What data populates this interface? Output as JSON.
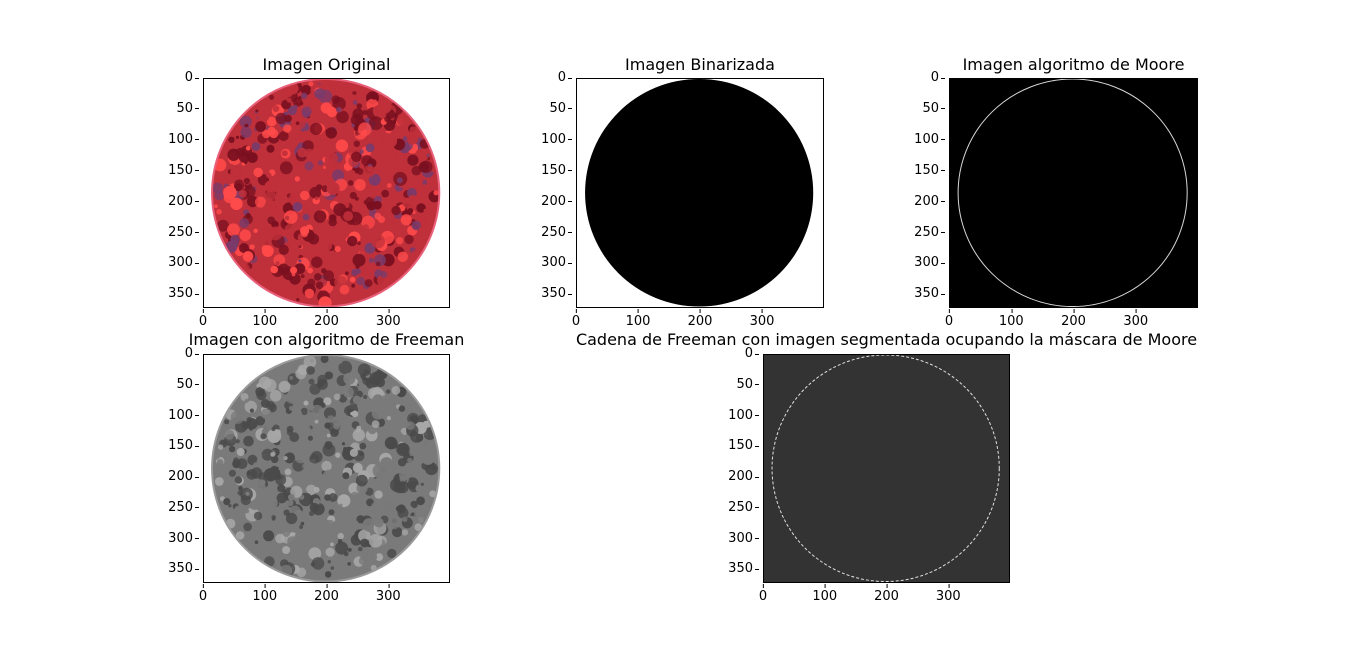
{
  "figure": {
    "panels": [
      {
        "id": "original",
        "title": "Imagen Original",
        "image_kind": "color-dot-plate",
        "colors": {
          "background": "#ffffff",
          "dots_dark": "#7a1020",
          "dots_mid": "#c0303a",
          "dots_light": "#ff4a4a",
          "rim": "#e8607a",
          "accent": "#7a3a6a"
        },
        "xticks": [
          "0",
          "100",
          "200",
          "300"
        ],
        "yticks": [
          "0",
          "50",
          "100",
          "150",
          "200",
          "250",
          "300",
          "350"
        ]
      },
      {
        "id": "binarized",
        "title": "Imagen Binarizada",
        "image_kind": "filled-disk",
        "colors": {
          "background": "#ffffff",
          "disk": "#000000"
        },
        "xticks": [
          "0",
          "100",
          "200",
          "300"
        ],
        "yticks": [
          "0",
          "50",
          "100",
          "150",
          "200",
          "250",
          "300",
          "350"
        ]
      },
      {
        "id": "moore",
        "title": "Imagen algoritmo de Moore",
        "image_kind": "contour",
        "colors": {
          "background": "#000000",
          "contour": "#d8d8d8"
        },
        "xticks": [
          "0",
          "100",
          "200",
          "300"
        ],
        "yticks": [
          "0",
          "50",
          "100",
          "150",
          "200",
          "250",
          "300",
          "350"
        ]
      },
      {
        "id": "freeman",
        "title": "Imagen con algoritmo de Freeman",
        "image_kind": "gray-dot-plate",
        "colors": {
          "background": "#ffffff",
          "dots_dark": "#4a4a4a",
          "dots_mid": "#7a7a7a",
          "dots_light": "#a8a8a8",
          "rim": "#9a9a9a"
        },
        "xticks": [
          "0",
          "100",
          "200",
          "300"
        ],
        "yticks": [
          "0",
          "50",
          "100",
          "150",
          "200",
          "250",
          "300",
          "350"
        ]
      },
      {
        "id": "freeman-moore",
        "title": "Cadena de Freeman con imagen segmentada ocupando la máscara de Moore",
        "image_kind": "dashed-contour",
        "colors": {
          "background": "#333333",
          "contour": "#e0e0e0"
        },
        "xticks": [
          "0",
          "100",
          "200",
          "300"
        ],
        "yticks": [
          "0",
          "50",
          "100",
          "150",
          "200",
          "250",
          "300",
          "350"
        ]
      }
    ]
  }
}
